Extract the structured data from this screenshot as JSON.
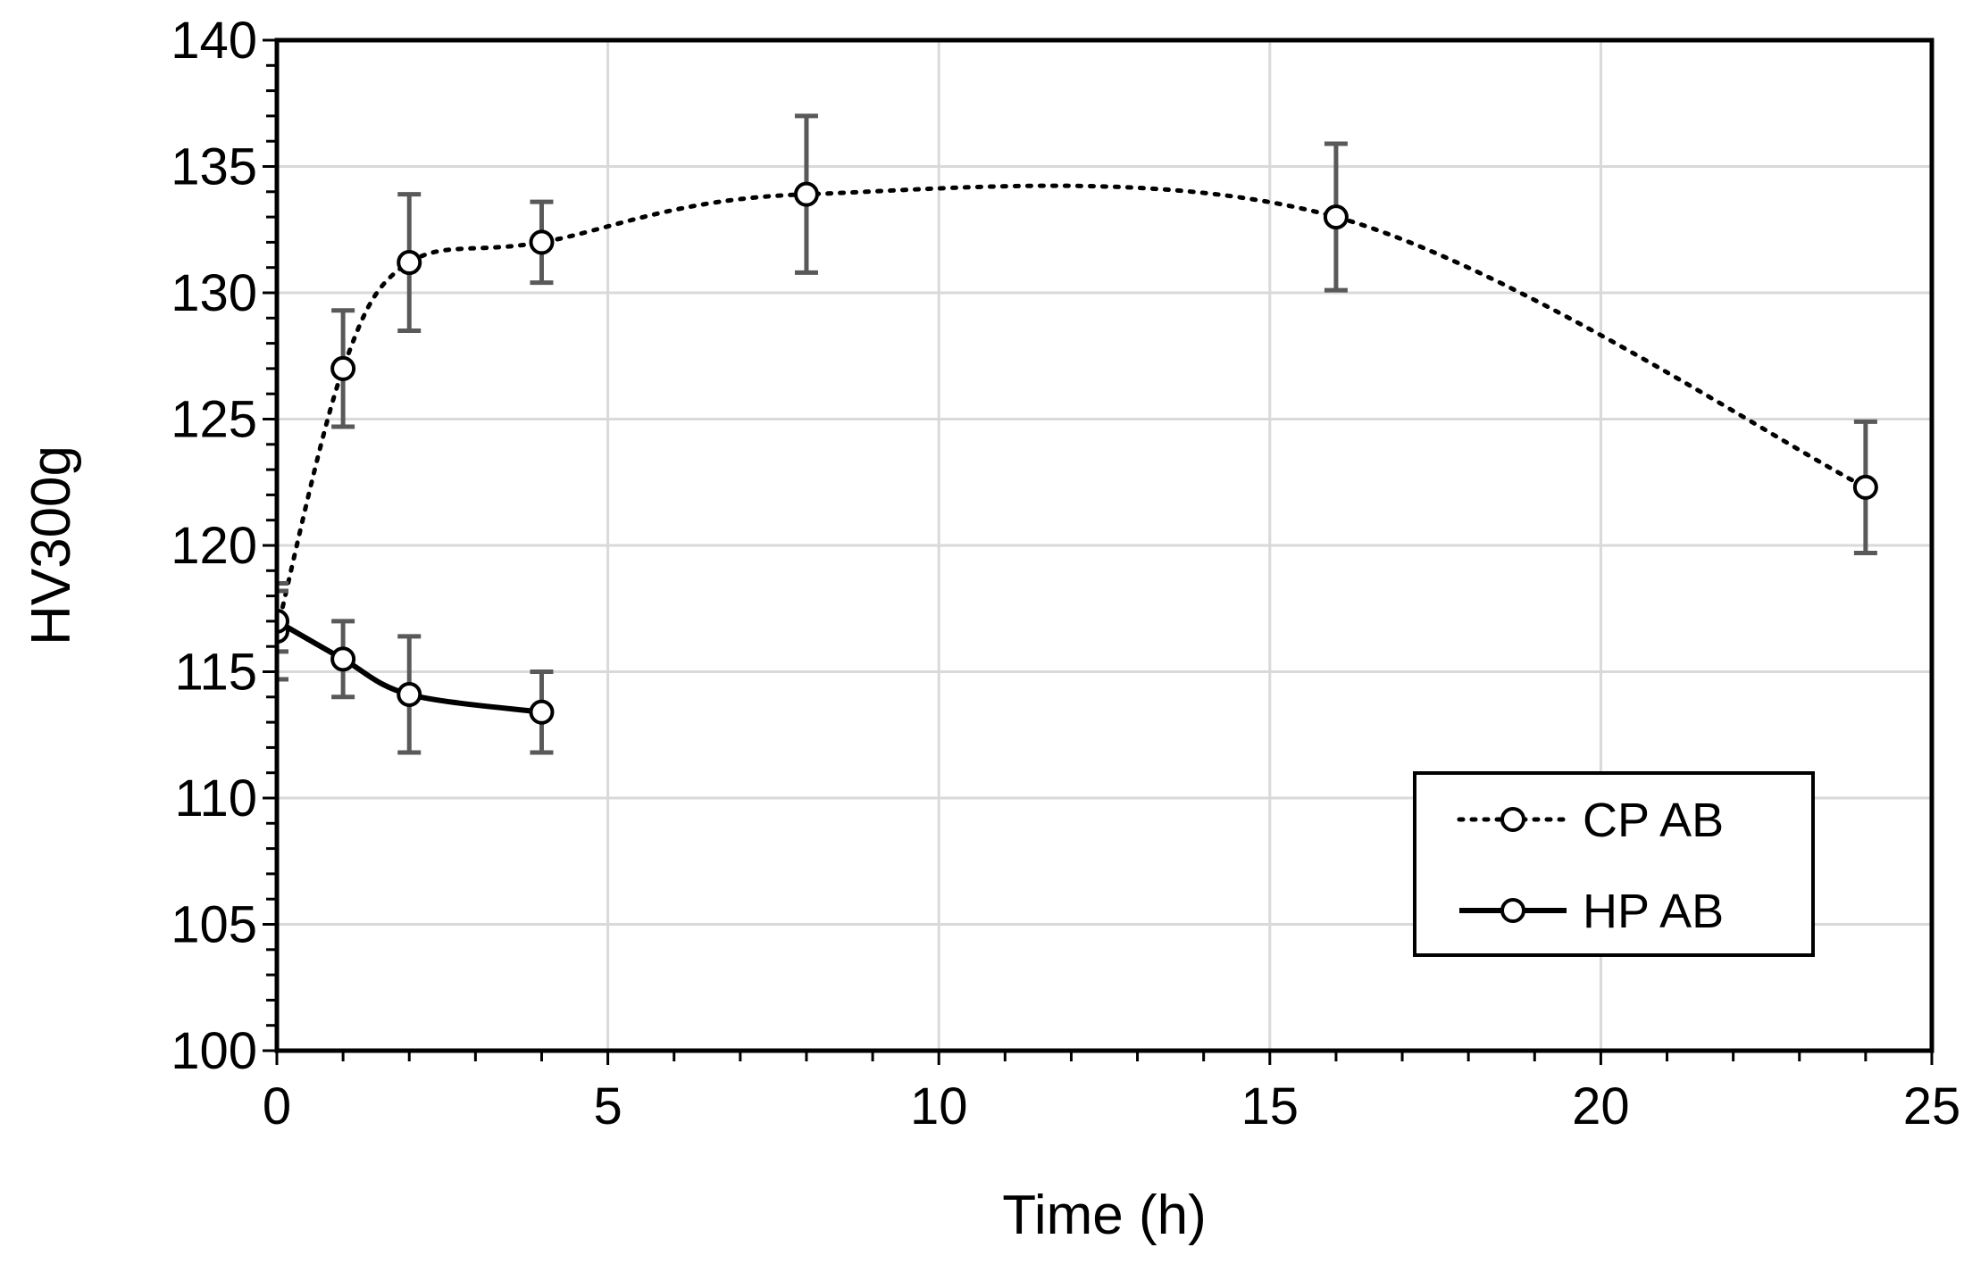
{
  "chart_data": {
    "type": "line",
    "title": "",
    "xlabel": "Time (h)",
    "ylabel": "HV300g",
    "xlim": [
      0,
      25
    ],
    "ylim": [
      100,
      140
    ],
    "xticks": [
      "0",
      "5",
      "10",
      "15",
      "20",
      "25"
    ],
    "yticks": [
      "100",
      "105",
      "110",
      "115",
      "120",
      "125",
      "130",
      "135",
      "140"
    ],
    "grid": true,
    "legend_position": "bottom-right",
    "series": [
      {
        "name": "CP AB",
        "style": "dotted",
        "color": "#000000",
        "x": [
          0,
          1,
          2,
          4,
          8,
          16,
          24
        ],
        "y": [
          116.6,
          127.0,
          131.2,
          132.0,
          133.9,
          133.0,
          122.3
        ],
        "err": [
          1.9,
          2.3,
          2.7,
          1.6,
          3.1,
          2.9,
          2.6
        ]
      },
      {
        "name": "HP AB",
        "style": "solid",
        "color": "#000000",
        "x": [
          0,
          1,
          2,
          4
        ],
        "y": [
          117.0,
          115.5,
          114.1,
          113.4
        ],
        "err": [
          1.2,
          1.5,
          2.3,
          1.6
        ]
      }
    ],
    "errorbar_color": "#595959"
  }
}
